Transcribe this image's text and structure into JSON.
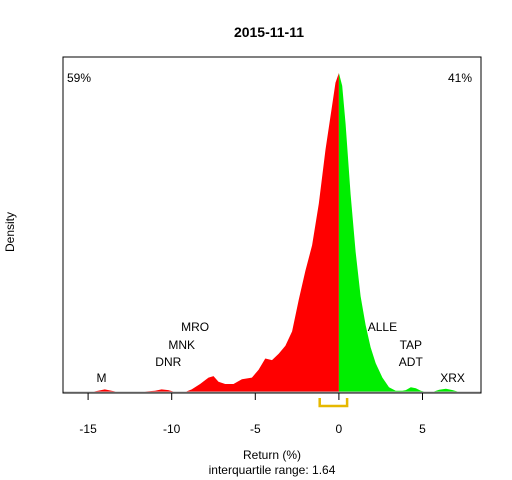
{
  "chart_data": {
    "type": "area",
    "title": "2015-11-11",
    "xlabel": "Return (%)",
    "ylabel": "Density",
    "subtitle": "interquartile range: 1.64",
    "xlim": [
      -16.5,
      8.5
    ],
    "ylim": [
      0,
      1
    ],
    "xticks": [
      -15,
      -10,
      -5,
      0,
      5
    ],
    "pct_left": "59%",
    "pct_right": "41%",
    "split_x": 0,
    "iqr": [
      -1.15,
      0.49
    ],
    "colors": {
      "negative": "#ff0000",
      "positive": "#00ee00",
      "pct_left": "#ff0000",
      "pct_right": "#009900",
      "iqr": "#e6b800"
    },
    "density": {
      "x": [
        -14.8,
        -14.4,
        -14.0,
        -13.6,
        -13.2,
        -12.8,
        -12.0,
        -11.0,
        -10.6,
        -10.2,
        -9.8,
        -9.2,
        -8.8,
        -8.3,
        -7.8,
        -7.5,
        -7.2,
        -6.8,
        -6.3,
        -5.8,
        -5.2,
        -4.8,
        -4.4,
        -4.0,
        -3.6,
        -3.2,
        -2.8,
        -2.4,
        -2.0,
        -1.6,
        -1.2,
        -0.8,
        -0.4,
        -0.2,
        0.0,
        0.2,
        0.4,
        0.7,
        1.0,
        1.3,
        1.6,
        1.9,
        2.2,
        2.6,
        3.0,
        3.4,
        3.8,
        4.0,
        4.3,
        4.6,
        4.9,
        5.2,
        5.6,
        6.0,
        6.4,
        6.8,
        7.2
      ],
      "y": [
        0.0,
        0.004,
        0.008,
        0.004,
        0.0,
        0.0,
        0.0,
        0.004,
        0.008,
        0.006,
        0.0,
        0.0,
        0.008,
        0.025,
        0.045,
        0.05,
        0.032,
        0.025,
        0.025,
        0.04,
        0.045,
        0.07,
        0.105,
        0.1,
        0.12,
        0.145,
        0.19,
        0.29,
        0.38,
        0.46,
        0.59,
        0.76,
        0.9,
        0.97,
        1.0,
        0.96,
        0.84,
        0.62,
        0.44,
        0.3,
        0.21,
        0.14,
        0.09,
        0.045,
        0.015,
        0.004,
        0.004,
        0.006,
        0.015,
        0.012,
        0.004,
        0.0,
        0.0,
        0.007,
        0.01,
        0.006,
        0.0
      ]
    },
    "labels": [
      {
        "text": "M",
        "x": -14.2,
        "level": 1
      },
      {
        "text": "DNR",
        "x": -10.2,
        "level": 2
      },
      {
        "text": "MNK",
        "x": -9.4,
        "level": 3
      },
      {
        "text": "MRO",
        "x": -8.6,
        "level": 4
      },
      {
        "text": "ALLE",
        "x": 2.6,
        "level": 4
      },
      {
        "text": "TAP",
        "x": 4.3,
        "level": 3
      },
      {
        "text": "ADT",
        "x": 4.3,
        "level": 2
      },
      {
        "text": "XRX",
        "x": 6.8,
        "level": 1
      }
    ]
  }
}
